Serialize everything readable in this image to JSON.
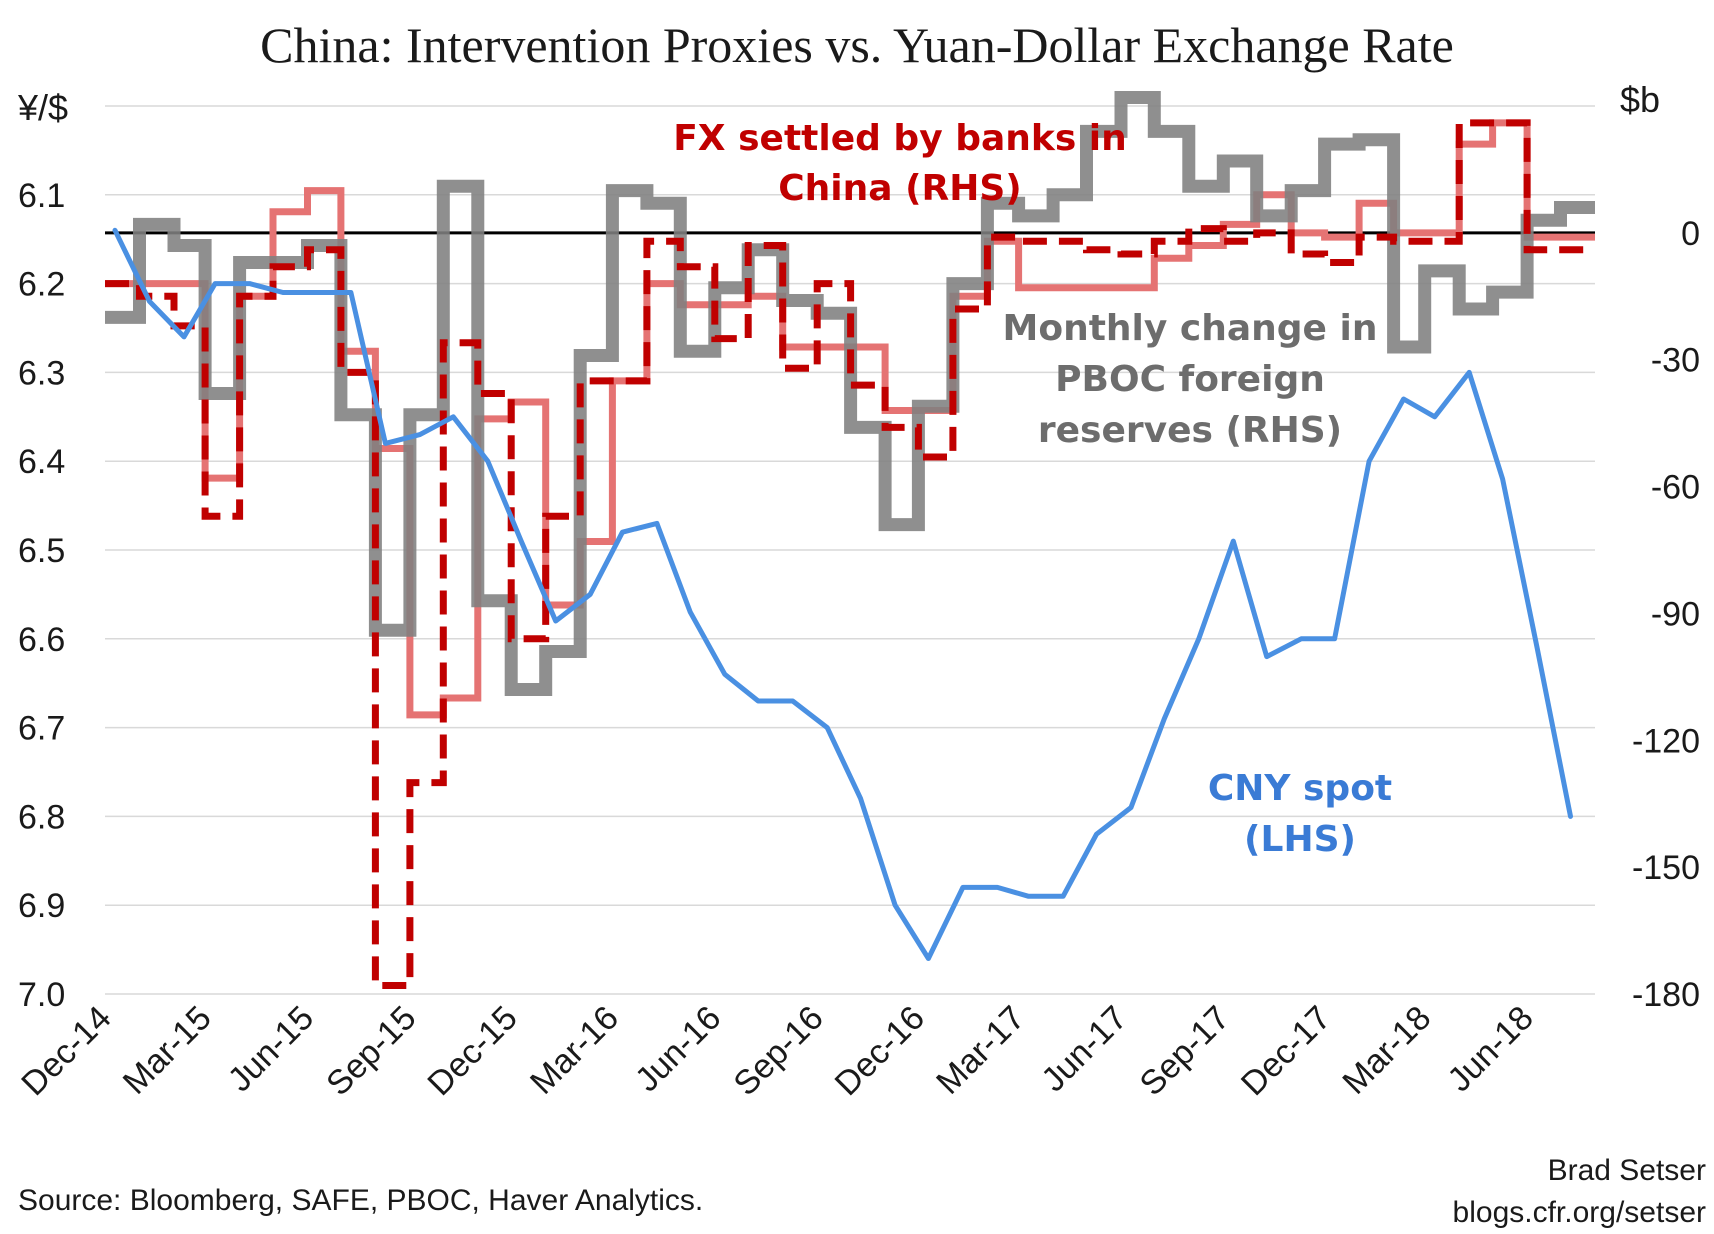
{
  "chart_data": {
    "type": "line",
    "title": "China: Intervention Proxies vs. Yuan-Dollar Exchange Rate",
    "left_axis": {
      "unit": "¥/$",
      "reversed": true,
      "range": [
        6.0,
        7.0
      ],
      "ticks": [
        "6.1",
        "6.2",
        "6.3",
        "6.4",
        "6.5",
        "6.6",
        "6.7",
        "6.8",
        "6.9",
        "7.0"
      ]
    },
    "right_axis": {
      "unit": "$b",
      "range": [
        -180,
        30
      ],
      "ticks": [
        "0",
        "-30",
        "-60",
        "-90",
        "-120",
        "-150",
        "-180"
      ]
    },
    "x_axis": {
      "ticks": [
        "Dec-14",
        "Mar-15",
        "Jun-15",
        "Sep-15",
        "Dec-15",
        "Mar-16",
        "Jun-16",
        "Sep-16",
        "Dec-16",
        "Mar-17",
        "Jun-17",
        "Sep-17",
        "Dec-17",
        "Mar-18",
        "Jun-18"
      ]
    },
    "zero_line": true,
    "annotations": {
      "fx_banks": [
        "FX settled by banks in",
        "China (RHS)"
      ],
      "reserves": [
        "Monthly change in",
        "PBOC foreign",
        "reserves (RHS)"
      ],
      "cny": [
        "CNY spot",
        "(LHS)"
      ]
    },
    "colors": {
      "fx_banks_dashed": "#c00000",
      "fx_banks_light": "#e57373",
      "reserves": "#808080",
      "cny": "#4a90e2",
      "cny_label": "#3a7bd5",
      "zero_line": "#000000"
    },
    "series": [
      {
        "name": "FX settled by banks in China (RHS)",
        "axis": "right",
        "style": "dashed-step",
        "x": [
          "2014-12",
          "2015-01",
          "2015-02",
          "2015-03",
          "2015-04",
          "2015-05",
          "2015-06",
          "2015-07",
          "2015-08",
          "2015-09",
          "2015-10",
          "2015-11",
          "2015-12",
          "2016-01",
          "2016-02",
          "2016-03",
          "2016-04",
          "2016-05",
          "2016-06",
          "2016-07",
          "2016-08",
          "2016-09",
          "2016-10",
          "2016-11",
          "2016-12",
          "2017-01",
          "2017-02",
          "2017-03",
          "2017-04",
          "2017-05",
          "2017-06",
          "2017-07",
          "2017-08",
          "2017-09",
          "2017-10",
          "2017-11",
          "2017-12",
          "2018-01",
          "2018-02",
          "2018-03",
          "2018-04",
          "2018-05",
          "2018-06",
          "2018-07"
        ],
        "values": [
          -12,
          -15,
          -22,
          -67,
          -15,
          -8,
          -4,
          -33,
          -178,
          -130,
          -26,
          -38,
          -96,
          -67,
          -35,
          -35,
          -2,
          -8,
          -25,
          -3,
          -32,
          -12,
          -36,
          -46,
          -53,
          -18,
          -1,
          -2,
          -2,
          -4,
          -5,
          -2,
          1,
          -2,
          0,
          -5,
          -7,
          -1,
          -2,
          -2,
          26,
          26,
          -4,
          -4
        ]
      },
      {
        "name": "FX settled by banks in China (RHS), light",
        "axis": "right",
        "style": "step",
        "x": [
          "2014-12",
          "2015-01",
          "2015-02",
          "2015-03",
          "2015-04",
          "2015-05",
          "2015-06",
          "2015-07",
          "2015-08",
          "2015-09",
          "2015-10",
          "2015-11",
          "2015-12",
          "2016-01",
          "2016-02",
          "2016-03",
          "2016-04",
          "2016-05",
          "2016-06",
          "2016-07",
          "2016-08",
          "2016-09",
          "2016-10",
          "2016-11",
          "2016-12",
          "2017-01",
          "2017-02",
          "2017-03",
          "2017-04",
          "2017-05",
          "2017-06",
          "2017-07",
          "2017-08",
          "2017-09",
          "2017-10",
          "2017-11",
          "2017-12",
          "2018-01",
          "2018-02",
          "2018-03",
          "2018-04",
          "2018-05",
          "2018-06",
          "2018-07"
        ],
        "values": [
          -12,
          -12,
          -12,
          -58,
          -15,
          5,
          10,
          -28,
          -51,
          -114,
          -110,
          -44,
          -40,
          -88,
          -73,
          -35,
          -12,
          -17,
          -17,
          -15,
          -27,
          -27,
          -27,
          -42,
          -42,
          -15,
          -2,
          -13,
          -13,
          -13,
          -13,
          -6,
          -3,
          2,
          9,
          0,
          -1,
          7,
          0,
          0,
          21,
          26,
          -1,
          -1
        ]
      },
      {
        "name": "Monthly change in PBOC foreign reserves (RHS)",
        "axis": "right",
        "style": "step",
        "x": [
          "2014-12",
          "2015-01",
          "2015-02",
          "2015-03",
          "2015-04",
          "2015-05",
          "2015-06",
          "2015-07",
          "2015-08",
          "2015-09",
          "2015-10",
          "2015-11",
          "2015-12",
          "2016-01",
          "2016-02",
          "2016-03",
          "2016-04",
          "2016-05",
          "2016-06",
          "2016-07",
          "2016-08",
          "2016-09",
          "2016-10",
          "2016-11",
          "2016-12",
          "2017-01",
          "2017-02",
          "2017-03",
          "2017-04",
          "2017-05",
          "2017-06",
          "2017-07",
          "2017-08",
          "2017-09",
          "2017-10",
          "2017-11",
          "2017-12",
          "2018-01",
          "2018-02",
          "2018-03",
          "2018-04",
          "2018-05",
          "2018-06",
          "2018-07"
        ],
        "values": [
          -20,
          2,
          -3,
          -38,
          -7,
          -7,
          -3,
          -43,
          -94,
          -43,
          11,
          -87,
          -108,
          -99,
          -29,
          10,
          7,
          -28,
          -13,
          -4,
          -16,
          -19,
          -46,
          -69,
          -41,
          -12,
          7,
          4,
          9,
          24,
          32,
          24,
          11,
          17,
          4,
          10,
          21,
          22,
          -27,
          -9,
          -18,
          -14,
          3,
          6
        ]
      },
      {
        "name": "CNY spot (LHS)",
        "axis": "left",
        "style": "line",
        "x": [
          "2014-12",
          "2015-01",
          "2015-02",
          "2015-03",
          "2015-04",
          "2015-05",
          "2015-06",
          "2015-07",
          "2015-08",
          "2015-09",
          "2015-10",
          "2015-11",
          "2015-12",
          "2016-01",
          "2016-02",
          "2016-03",
          "2016-04",
          "2016-05",
          "2016-06",
          "2016-07",
          "2016-08",
          "2016-09",
          "2016-10",
          "2016-11",
          "2016-12",
          "2017-01",
          "2017-02",
          "2017-03",
          "2017-04",
          "2017-05",
          "2017-06",
          "2017-07",
          "2017-08",
          "2017-09",
          "2017-10",
          "2017-11",
          "2017-12",
          "2018-01",
          "2018-02",
          "2018-03",
          "2018-04",
          "2018-05",
          "2018-06",
          "2018-07"
        ],
        "values": [
          6.14,
          6.22,
          6.26,
          6.2,
          6.2,
          6.21,
          6.21,
          6.21,
          6.38,
          6.37,
          6.35,
          6.4,
          6.49,
          6.58,
          6.55,
          6.48,
          6.47,
          6.57,
          6.64,
          6.67,
          6.67,
          6.7,
          6.78,
          6.9,
          6.96,
          6.88,
          6.88,
          6.89,
          6.89,
          6.82,
          6.79,
          6.69,
          6.6,
          6.49,
          6.62,
          6.6,
          6.6,
          6.4,
          6.33,
          6.35,
          6.3,
          6.42,
          6.61,
          6.8
        ]
      }
    ]
  },
  "footer": {
    "source": "Source: Bloomberg, SAFE, PBOC, Haver Analytics.",
    "author": "Brad Setser",
    "url": "blogs.cfr.org/setser"
  }
}
